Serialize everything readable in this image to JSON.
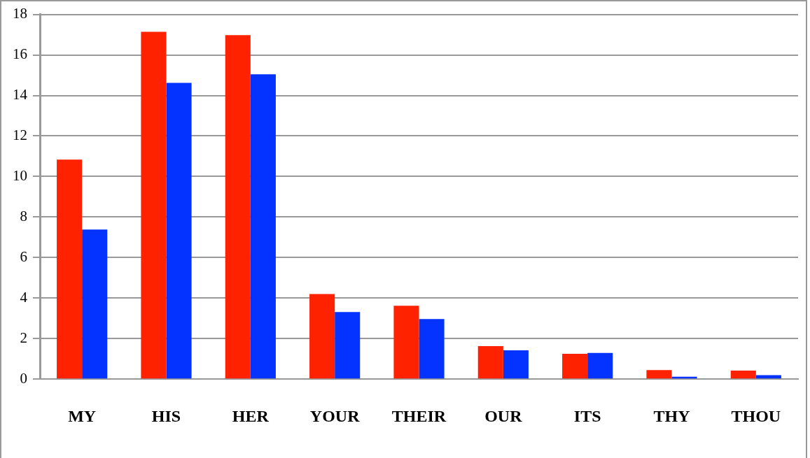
{
  "chart_data": {
    "type": "bar",
    "categories": [
      "MY",
      "HIS",
      "HER",
      "YOUR",
      "THEIR",
      "OUR",
      "ITS",
      "THY",
      "THOU"
    ],
    "series": [
      {
        "color": "#ff2200",
        "values": [
          10.83,
          17.14,
          16.98,
          4.2,
          3.62,
          1.63,
          1.25,
          0.45,
          0.42
        ]
      },
      {
        "color": "#0433ff",
        "values": [
          7.38,
          14.62,
          15.04,
          3.31,
          2.97,
          1.42,
          1.29,
          0.12,
          0.2
        ]
      }
    ],
    "ylim": [
      0,
      18
    ],
    "yticks": [
      0,
      2,
      4,
      6,
      8,
      10,
      12,
      14,
      16,
      18
    ],
    "grid": "y",
    "legend": false
  }
}
